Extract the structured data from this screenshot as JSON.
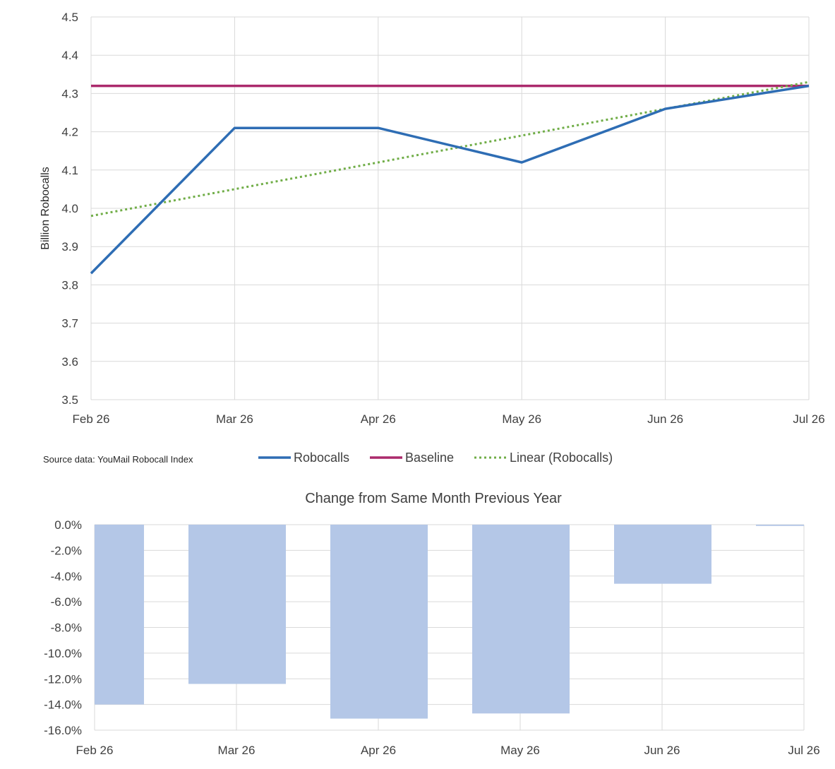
{
  "chart_data": [
    {
      "type": "line",
      "title": "",
      "xlabel": "",
      "ylabel": "Billion Robocalls",
      "categories": [
        "Feb 26",
        "Mar 26",
        "Apr 26",
        "May 26",
        "Jun 26",
        "Jul 26"
      ],
      "ylim": [
        3.5,
        4.5
      ],
      "yticks": [
        "3.5",
        "3.6",
        "3.7",
        "3.8",
        "3.9",
        "4.0",
        "4.1",
        "4.2",
        "4.3",
        "4.4",
        "4.5"
      ],
      "grid": true,
      "legend_position": "bottom",
      "series": [
        {
          "name": "Robocalls",
          "values": [
            3.83,
            4.21,
            4.21,
            4.12,
            4.26,
            4.32
          ],
          "color": "#2e6db4",
          "style": "solid"
        },
        {
          "name": "Baseline",
          "values": [
            4.32,
            4.32,
            4.32,
            4.32,
            4.32,
            4.32
          ],
          "color": "#ab2a6c",
          "style": "solid"
        },
        {
          "name": "Linear (Robocalls)",
          "values": [
            3.98,
            4.05,
            4.12,
            4.19,
            4.26,
            4.33
          ],
          "color": "#70ad47",
          "style": "dotted"
        }
      ],
      "source_note": "Source data: YouMail Robocall Index"
    },
    {
      "type": "bar",
      "title": "Change from Same Month Previous Year",
      "xlabel": "",
      "ylabel": "",
      "categories": [
        "Feb 26",
        "Mar 26",
        "Apr 26",
        "May 26",
        "Jun 26",
        "Jul 26"
      ],
      "values": [
        -14.0,
        -12.4,
        -15.1,
        -14.7,
        -4.6,
        -0.1
      ],
      "ylim": [
        -16,
        0
      ],
      "yticks": [
        "0.0%",
        "-2.0%",
        "-4.0%",
        "-6.0%",
        "-8.0%",
        "-10.0%",
        "-12.0%",
        "-14.0%",
        "-16.0%"
      ],
      "bar_color": "#b4c7e7",
      "grid": true
    }
  ]
}
